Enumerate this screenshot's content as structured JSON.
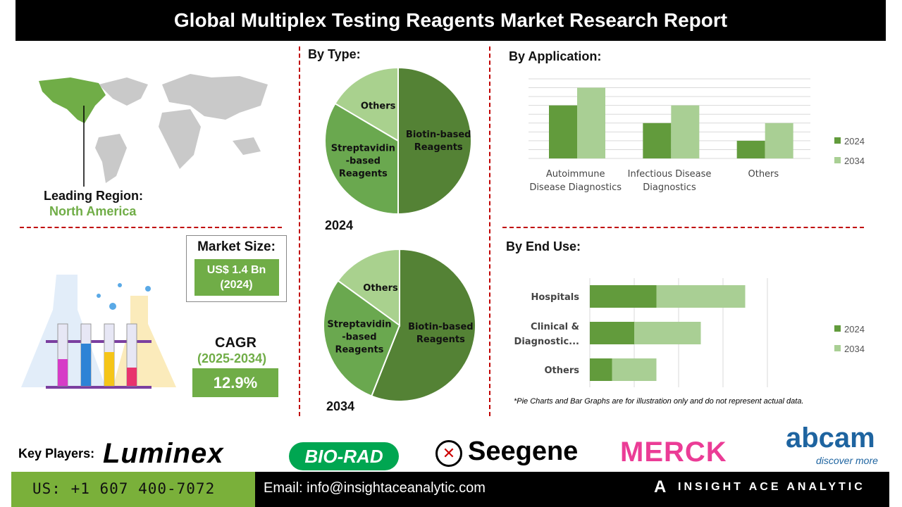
{
  "title": "Global Multiplex Testing Reagents Market Research Report",
  "region": {
    "label": "Leading Region:",
    "value": "North America"
  },
  "market_size": {
    "label": "Market Size:",
    "value": "US$ 1.4 Bn",
    "year": "(2024)"
  },
  "cagr": {
    "label": "CAGR",
    "period": "(2025-2034)",
    "value": "12.9%"
  },
  "colors": {
    "dark_green": "#548235",
    "mid_green": "#6aa84f",
    "light_green": "#a9d18e",
    "bar_2024": "#629b3c",
    "bar_2034": "#a9cf94",
    "accent_red": "#c00000",
    "footer_green": "#7ab03a"
  },
  "chart_data": [
    {
      "type": "pie",
      "title": "By Type:",
      "year_label": "2024",
      "slices": [
        {
          "label": "Biotin-based Reagents",
          "value": 50
        },
        {
          "label": "Streptavidin-based Reagents",
          "value": 33.5
        },
        {
          "label": "Others",
          "value": 16.5
        }
      ]
    },
    {
      "type": "pie",
      "year_label": "2034",
      "slices": [
        {
          "label": "Biotin-based Reagents",
          "value": 56
        },
        {
          "label": "Streptavidin-based Reagents",
          "value": 29
        },
        {
          "label": "Others",
          "value": 15
        }
      ]
    },
    {
      "type": "bar",
      "title": "By Application:",
      "categories": [
        "Autoimmune Disease Diagnostics",
        "Infectious Disease Diagnostics",
        "Others"
      ],
      "series": [
        {
          "name": "2024",
          "values": [
            6,
            4,
            2
          ]
        },
        {
          "name": "2034",
          "values": [
            8,
            6,
            4
          ]
        }
      ],
      "ylim": [
        0,
        9
      ],
      "grid": true,
      "legend": "right"
    },
    {
      "type": "bar",
      "orientation": "horizontal",
      "stacked": true,
      "title": "By End Use:",
      "categories": [
        "Hospitals",
        "Clinical & Diagnostic...",
        "Others"
      ],
      "series": [
        {
          "name": "2024",
          "values": [
            1.5,
            1,
            0.5
          ]
        },
        {
          "name": "2034",
          "values": [
            2,
            1.5,
            1
          ]
        }
      ],
      "xlim": [
        0,
        4
      ],
      "grid": true,
      "legend": "right"
    }
  ],
  "disclaimer": "*Pie Charts and Bar Graphs are for illustration only and do not represent actual data.",
  "key_players": {
    "label": "Key Players:",
    "logos": [
      "Luminex",
      "BIO-RAD",
      "Seegene",
      "MERCK",
      "abcam"
    ],
    "abcam_tagline": "discover more"
  },
  "footer": {
    "phone": "US: +1 607 400-7072",
    "email": "Email: info@insightaceanalytic.com",
    "brand": "INSIGHT ACE ANALYTIC"
  }
}
